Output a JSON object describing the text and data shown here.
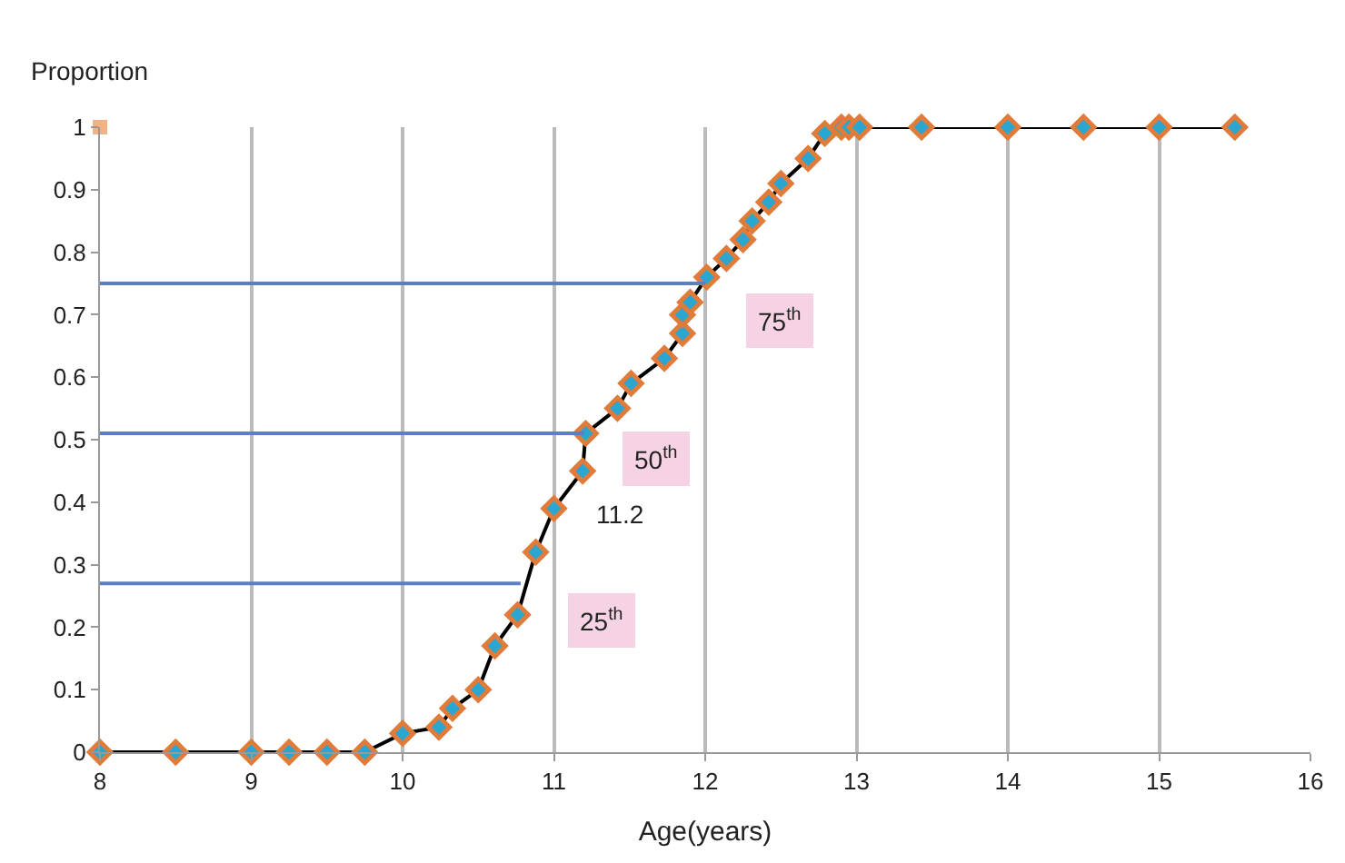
{
  "chart_data": {
    "type": "line",
    "xlabel": "Age(years)",
    "ylabel": "Proportion",
    "x": [
      8,
      8.5,
      9,
      9.25,
      9.5,
      9.75,
      10,
      10.24,
      10.33,
      10.5,
      10.61,
      10.76,
      10.88,
      11.0,
      11.19,
      11.21,
      11.42,
      11.51,
      11.73,
      11.85,
      11.85,
      11.9,
      12.01,
      12.14,
      12.25,
      12.31,
      12.42,
      12.5,
      12.68,
      12.79,
      12.9,
      12.95,
      13.02,
      13.43,
      14,
      14.5,
      15,
      15.5
    ],
    "series": [
      {
        "color": "#000000",
        "values": [
          0,
          0,
          0,
          0,
          0,
          0,
          0.03,
          0.04,
          0.07,
          0.1,
          0.17,
          0.22,
          0.32,
          0.39,
          0.45,
          0.51,
          0.55,
          0.59,
          0.63,
          0.67,
          0.7,
          0.72,
          0.76,
          0.79,
          0.82,
          0.85,
          0.88,
          0.91,
          0.95,
          0.99,
          1,
          1,
          1,
          1,
          1,
          1,
          1,
          1
        ]
      },
      {
        "type": "scatter",
        "marker": "square",
        "color": "#f4b183",
        "x": [
          8
        ],
        "values": [
          1
        ]
      },
      {
        "color": "#5b7fbf",
        "marker": "none",
        "x": [
          8,
          12.0
        ],
        "values": [
          0.75,
          0.75
        ]
      },
      {
        "color": "#5b7fbf",
        "marker": "none",
        "x": [
          8,
          11.2
        ],
        "values": [
          0.51,
          0.51
        ]
      },
      {
        "color": "#5b7fbf",
        "marker": "none",
        "x": [
          8,
          10.78
        ],
        "values": [
          0.27,
          0.27
        ]
      }
    ],
    "marker": "diamond",
    "line_style": "solid",
    "xlim": [
      8,
      16
    ],
    "xticks": [
      8,
      9,
      10,
      11,
      12,
      13,
      14,
      15,
      16
    ],
    "ylim": [
      0,
      1
    ],
    "yticks": [
      0,
      0.1,
      0.2,
      0.3,
      0.4,
      0.5,
      0.6,
      0.7,
      0.8,
      0.9,
      1
    ],
    "grid": "x",
    "annotations": [
      {
        "text": "75$^{th}$",
        "x": 12.49,
        "y": 0.69
      },
      {
        "text": "50$^{th}$",
        "x": 11.67,
        "y": 0.47
      },
      {
        "text": "25$^{th}$",
        "x": 11.31,
        "y": 0.21
      },
      "11.2"
    ]
  }
}
